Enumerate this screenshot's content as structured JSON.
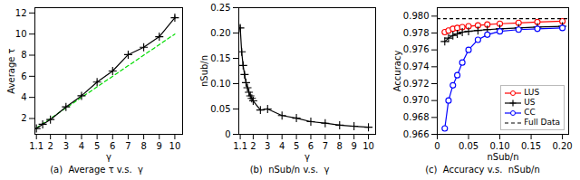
{
  "chart_data": [
    {
      "type": "line",
      "title": "(a)  Average τ v.s.  γ",
      "xlabel": "γ",
      "ylabel": "Average τ",
      "x": [
        1.1,
        1.5,
        2,
        3,
        4,
        5,
        6,
        7,
        8,
        9,
        10
      ],
      "xlim": [
        1.0,
        10.5
      ],
      "ylim": [
        0.5,
        12.5
      ],
      "xticks": [
        1.1,
        2,
        3,
        4,
        5,
        6,
        7,
        8,
        9,
        10
      ],
      "yticks": [
        2,
        4,
        6,
        8,
        10,
        12
      ],
      "series": [
        {
          "x": [
            1.1,
            10
          ],
          "values": [
            1.1,
            10
          ],
          "color": "#00dd00",
          "line_style": "dashed"
        },
        {
          "values": [
            1.05,
            1.45,
            1.9,
            3.1,
            4.15,
            5.45,
            6.5,
            8.05,
            8.75,
            9.75,
            11.55
          ],
          "errors": [
            0.07,
            0.09,
            0.1,
            0.12,
            0.13,
            0.13,
            0.15,
            0.15,
            0.17,
            0.17,
            0.18
          ],
          "color": "#000000",
          "marker": "plus"
        }
      ]
    },
    {
      "type": "line",
      "title": "(b)  nSub/n v.s.  γ",
      "xlabel": "γ",
      "ylabel": "nSub/n",
      "x": [
        1.1,
        1.2,
        1.3,
        1.4,
        1.5,
        1.6,
        1.7,
        1.8,
        1.9,
        2.0,
        2.5,
        3.0,
        4.0,
        5.0,
        6.0,
        7.0,
        8.0,
        9.0,
        10.0
      ],
      "xlim": [
        1.0,
        10.5
      ],
      "ylim": [
        0.0,
        0.25
      ],
      "xticks": [
        1.1,
        2,
        3,
        4,
        5,
        6,
        7,
        8,
        9,
        10
      ],
      "yticks": [
        0,
        0.05,
        {
          "value": 0.1,
          "label": "0.10"
        },
        0.15,
        {
          "value": 0.2,
          "label": "0.20"
        },
        0.25
      ],
      "series": [
        {
          "values": [
            0.21,
            0.163,
            0.136,
            0.118,
            0.102,
            0.092,
            0.083,
            0.076,
            0.071,
            0.066,
            0.048,
            0.05,
            0.037,
            0.032,
            0.025,
            0.022,
            0.018,
            0.016,
            0.014
          ],
          "errors": [
            0.005,
            0.004,
            0.003,
            0.003,
            0.003,
            0.002,
            0.002,
            0.002,
            0.002,
            0.002,
            0.002,
            0.002,
            0.001,
            0.001,
            0.001,
            0.001,
            0.001,
            0.001,
            0.001
          ],
          "color": "#000000",
          "marker": "plus"
        }
      ]
    },
    {
      "type": "line",
      "title": "(c)  Accuracy v.s.  nSub/n",
      "xlabel": "nSub/n",
      "ylabel": "Accuracy",
      "xlim": [
        0.0,
        0.21
      ],
      "ylim": [
        0.966,
        0.981
      ],
      "xticks": [
        0,
        0.05,
        {
          "value": 0.1,
          "label": "0.10"
        },
        0.15,
        {
          "value": 0.2,
          "label": "0.20"
        }
      ],
      "yticks": [
        0.966,
        0.968,
        {
          "value": 0.97,
          "label": "0.970"
        },
        0.972,
        0.974,
        0.976,
        0.978,
        {
          "value": 0.98,
          "label": "0.980"
        }
      ],
      "legend": "lower right",
      "series": [
        {
          "name": "LUS",
          "x": [
            0.012,
            0.018,
            0.025,
            0.032,
            0.04,
            0.05,
            0.065,
            0.08,
            0.1,
            0.13,
            0.16,
            0.2
          ],
          "values": [
            0.9781,
            0.9783,
            0.9785,
            0.9786,
            0.9787,
            0.9788,
            0.9789,
            0.979,
            0.9791,
            0.9792,
            0.9793,
            0.9794
          ],
          "color": "#ff0000",
          "marker": "circle"
        },
        {
          "name": "US",
          "x": [
            0.012,
            0.018,
            0.025,
            0.032,
            0.04,
            0.05,
            0.065,
            0.08,
            0.1,
            0.13,
            0.16,
            0.2
          ],
          "values": [
            0.977,
            0.9774,
            0.9777,
            0.9779,
            0.9781,
            0.9782,
            0.9783,
            0.9784,
            0.9785,
            0.9786,
            0.9787,
            0.9788
          ],
          "color": "#000000",
          "marker": "plus"
        },
        {
          "name": "CC",
          "x": [
            0.012,
            0.018,
            0.025,
            0.032,
            0.04,
            0.05,
            0.065,
            0.08,
            0.1,
            0.13,
            0.16,
            0.2
          ],
          "values": [
            0.9667,
            0.97,
            0.9718,
            0.973,
            0.9745,
            0.976,
            0.9772,
            0.9778,
            0.9782,
            0.9784,
            0.9785,
            0.9786
          ],
          "color": "#0000ff",
          "marker": "circle"
        },
        {
          "name": "Full Data",
          "type": "hline",
          "values": [
            0.9797
          ],
          "color": "#000000",
          "line_style": "dashed"
        }
      ]
    }
  ]
}
